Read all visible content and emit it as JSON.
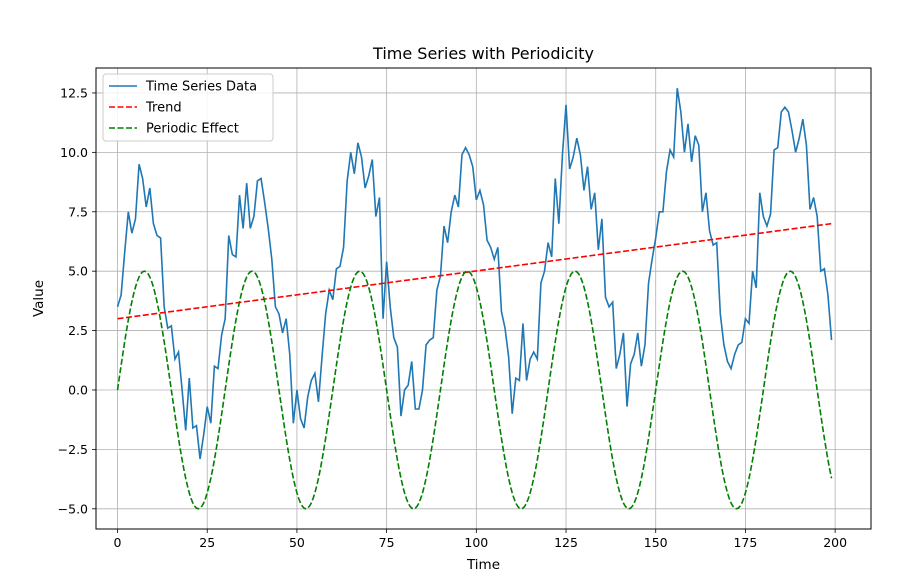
{
  "chart_data": {
    "type": "line",
    "title": "Time Series with Periodicity",
    "xlabel": "Time",
    "ylabel": "Value",
    "xlim": [
      -6,
      210
    ],
    "ylim": [
      -5.85,
      13.55
    ],
    "xticks": [
      0,
      25,
      50,
      75,
      100,
      125,
      150,
      175,
      200
    ],
    "yticks": [
      -5.0,
      -2.5,
      0.0,
      2.5,
      5.0,
      7.5,
      10.0,
      12.5
    ],
    "xtick_labels": [
      "0",
      "25",
      "50",
      "75",
      "100",
      "125",
      "150",
      "175",
      "200"
    ],
    "ytick_labels": [
      "−5.0",
      "−2.5",
      "0.0",
      "2.5",
      "5.0",
      "7.5",
      "10.0",
      "12.5"
    ],
    "grid": true,
    "legend_position": "top-left",
    "series": [
      {
        "name": "Time Series Data",
        "color": "#1f77b4",
        "style": "solid",
        "x": [
          0,
          1,
          2,
          3,
          4,
          5,
          6,
          7,
          8,
          9,
          10,
          11,
          12,
          13,
          14,
          15,
          16,
          17,
          18,
          19,
          20,
          21,
          22,
          23,
          24,
          25,
          26,
          27,
          28,
          29,
          30,
          31,
          32,
          33,
          34,
          35,
          36,
          37,
          38,
          39,
          40,
          41,
          42,
          43,
          44,
          45,
          46,
          47,
          48,
          49,
          50,
          51,
          52,
          53,
          54,
          55,
          56,
          57,
          58,
          59,
          60,
          61,
          62,
          63,
          64,
          65,
          66,
          67,
          68,
          69,
          70,
          71,
          72,
          73,
          74,
          75,
          76,
          77,
          78,
          79,
          80,
          81,
          82,
          83,
          84,
          85,
          86,
          87,
          88,
          89,
          90,
          91,
          92,
          93,
          94,
          95,
          96,
          97,
          98,
          99,
          100,
          101,
          102,
          103,
          104,
          105,
          106,
          107,
          108,
          109,
          110,
          111,
          112,
          113,
          114,
          115,
          116,
          117,
          118,
          119,
          120,
          121,
          122,
          123,
          124,
          125,
          126,
          127,
          128,
          129,
          130,
          131,
          132,
          133,
          134,
          135,
          136,
          137,
          138,
          139,
          140,
          141,
          142,
          143,
          144,
          145,
          146,
          147,
          148,
          149,
          150,
          151,
          152,
          153,
          154,
          155,
          156,
          157,
          158,
          159,
          160,
          161,
          162,
          163,
          164,
          165,
          166,
          167,
          168,
          169,
          170,
          171,
          172,
          173,
          174,
          175,
          176,
          177,
          178,
          179,
          180,
          181,
          182,
          183,
          184,
          185,
          186,
          187,
          188,
          189,
          190,
          191,
          192,
          193,
          194,
          195,
          196,
          197,
          198,
          199
        ],
        "y": [
          3.5,
          4.0,
          5.8,
          7.5,
          6.6,
          7.2,
          9.5,
          8.9,
          7.7,
          8.5,
          7.0,
          6.5,
          6.4,
          3.5,
          2.6,
          2.7,
          1.3,
          1.6,
          0.0,
          -1.7,
          0.5,
          -1.6,
          -1.5,
          -2.9,
          -1.9,
          -0.7,
          -1.4,
          1.0,
          0.9,
          2.3,
          3.0,
          6.5,
          5.7,
          5.6,
          8.2,
          6.8,
          8.7,
          6.8,
          7.3,
          8.8,
          8.9,
          7.9,
          6.8,
          5.5,
          3.5,
          3.2,
          2.4,
          3.0,
          1.5,
          -1.4,
          0.0,
          -1.2,
          -1.6,
          -0.3,
          0.4,
          0.7,
          -0.5,
          1.4,
          3.2,
          4.2,
          3.8,
          5.1,
          5.2,
          6.0,
          8.8,
          10.0,
          9.1,
          10.4,
          9.8,
          8.5,
          9.0,
          9.7,
          7.3,
          8.1,
          3.0,
          5.4,
          3.5,
          2.2,
          1.8,
          -1.1,
          0.0,
          0.2,
          1.2,
          -0.8,
          -0.8,
          0.0,
          1.9,
          2.1,
          2.2,
          4.2,
          4.8,
          6.9,
          6.2,
          7.5,
          8.2,
          7.7,
          9.9,
          10.2,
          9.9,
          9.4,
          8.0,
          8.4,
          7.8,
          6.3,
          6.0,
          5.5,
          6.0,
          3.3,
          2.6,
          1.4,
          -1.0,
          0.5,
          0.4,
          2.8,
          0.4,
          1.3,
          1.6,
          1.3,
          4.5,
          5.0,
          6.2,
          5.6,
          8.9,
          7.0,
          9.9,
          12.0,
          9.3,
          9.8,
          10.6,
          9.9,
          8.4,
          9.4,
          7.6,
          8.3,
          5.9,
          7.2,
          3.9,
          3.5,
          3.7,
          0.9,
          1.5,
          2.4,
          -0.7,
          1.1,
          1.5,
          2.4,
          1.0,
          1.9,
          4.5,
          5.5,
          6.4,
          7.5,
          7.5,
          9.2,
          10.1,
          9.8,
          12.7,
          11.7,
          10.0,
          11.2,
          9.6,
          10.7,
          10.3,
          7.5,
          8.3,
          6.7,
          6.1,
          6.2,
          3.2,
          1.9,
          1.2,
          0.9,
          1.5,
          1.9,
          2.0,
          3.0,
          2.8,
          5.0,
          4.3,
          8.3,
          7.3,
          6.9,
          7.4,
          10.1,
          10.2,
          11.7,
          11.9,
          11.7,
          10.9,
          10.0,
          10.6,
          11.4,
          10.3,
          7.6,
          8.1,
          7.3,
          5.0,
          5.1,
          4.0,
          2.1
        ]
      },
      {
        "name": "Trend",
        "color": "#ff0000",
        "style": "dashed",
        "function": "linear",
        "x_start": 0,
        "x_end": 199,
        "y_start": 3.0,
        "y_end": 7.0
      },
      {
        "name": "Periodic Effect",
        "color": "#008000",
        "style": "dashed",
        "function": "sine",
        "amplitude": 5,
        "period": 30,
        "x_start": 0,
        "x_end": 199
      }
    ]
  }
}
